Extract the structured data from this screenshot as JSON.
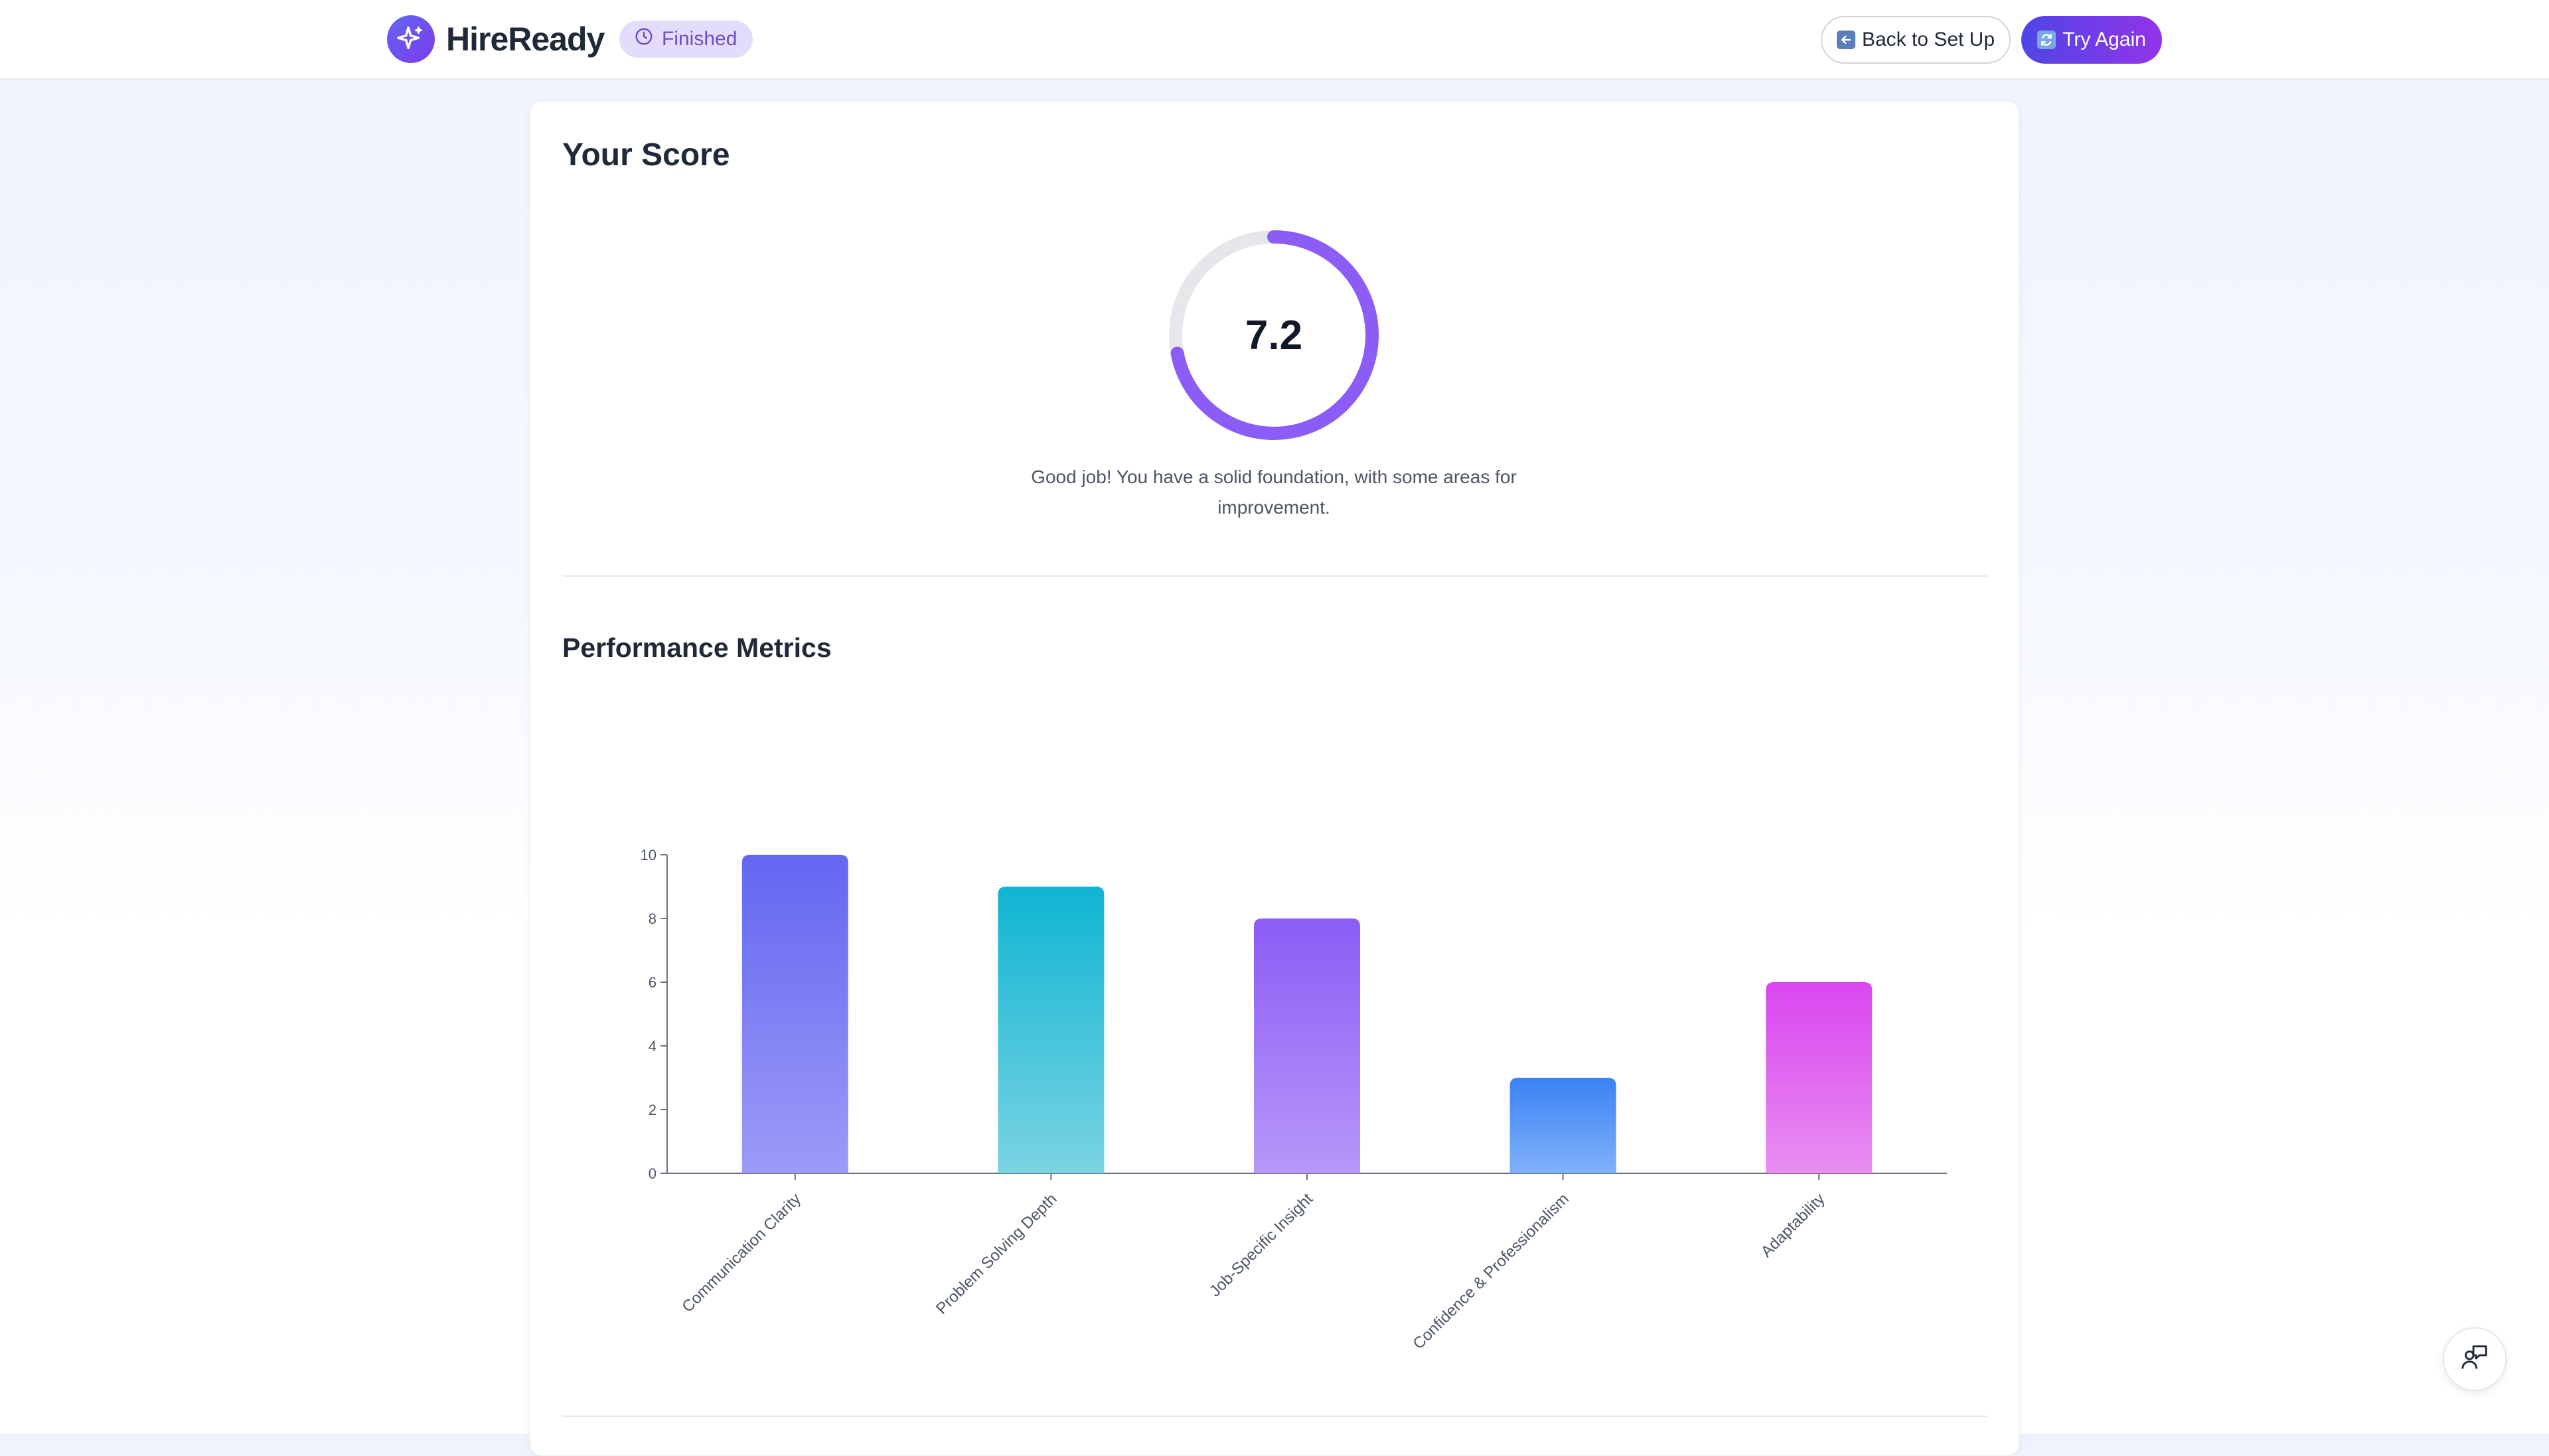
{
  "header": {
    "brand": "HireReady",
    "status": "Finished",
    "back_label": "Back to Set Up",
    "try_label": "Try Again"
  },
  "score": {
    "title": "Your Score",
    "value": 7.2,
    "value_text": "7.2",
    "max": 10,
    "message": "Good job! You have a solid foundation, with some areas for improvement."
  },
  "metrics": {
    "title": "Performance Metrics"
  },
  "chart_data": {
    "type": "bar",
    "categories": [
      "Communication Clarity",
      "Problem Solving Depth",
      "Job-Specific Insight",
      "Confidence & Professionalism",
      "Adaptability"
    ],
    "values": [
      10,
      9,
      8,
      3,
      6
    ],
    "ylim": [
      0,
      10
    ],
    "yticks": [
      0,
      2,
      4,
      6,
      8,
      10
    ],
    "colors": [
      [
        "#6366f1",
        "#9d9bf7"
      ],
      [
        "#0fb5d3",
        "#7ad3e3"
      ],
      [
        "#8b5cf6",
        "#b797f8"
      ],
      [
        "#3b82f6",
        "#7fb1f8"
      ],
      [
        "#d946ef",
        "#e98ef2"
      ]
    ],
    "grid": false,
    "legend": "none"
  },
  "icons": {
    "logo": "sparkle-icon",
    "status": "clock-icon",
    "back": "back-arrow-icon",
    "try": "refresh-icon",
    "fab": "feedback-chat-icon"
  },
  "colors": {
    "accent": "#8b5cf6",
    "track": "#e5e7eb"
  }
}
